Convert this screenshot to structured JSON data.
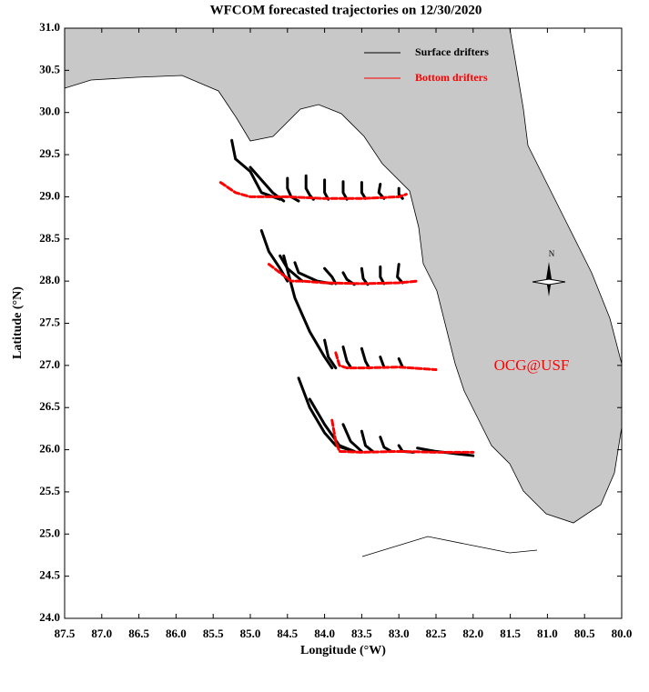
{
  "chart_data": {
    "type": "trajectory-map",
    "title": "WFCOM forecasted trajectories on 12/30/2020",
    "xlabel": "Longitude (°W)",
    "ylabel": "Latitude (°N)",
    "xlim": [
      87.5,
      80.0
    ],
    "ylim": [
      24.0,
      31.0
    ],
    "xticks": [
      {
        "value": 87.5,
        "label": "87.5"
      },
      {
        "value": 87,
        "label": "87.0"
      },
      {
        "value": 86.5,
        "label": "86.5"
      },
      {
        "value": 86,
        "label": "86.0"
      },
      {
        "value": 85.5,
        "label": "85.5"
      },
      {
        "value": 85,
        "label": "85.0"
      },
      {
        "value": 84.5,
        "label": "84.5"
      },
      {
        "value": 84,
        "label": "84.0"
      },
      {
        "value": 83.5,
        "label": "83.5"
      },
      {
        "value": 83,
        "label": "83.0"
      },
      {
        "value": 82.5,
        "label": "82.5"
      },
      {
        "value": 82,
        "label": "82.0"
      },
      {
        "value": 81.5,
        "label": "81.5"
      },
      {
        "value": 81,
        "label": "81.0"
      },
      {
        "value": 80.5,
        "label": "80.5"
      },
      {
        "value": 80,
        "label": "80.0"
      }
    ],
    "yticks": [
      {
        "value": 24,
        "label": "24.0"
      },
      {
        "value": 24.5,
        "label": "24.5"
      },
      {
        "value": 25,
        "label": "25.0"
      },
      {
        "value": 25.5,
        "label": "25.5"
      },
      {
        "value": 26,
        "label": "26.0"
      },
      {
        "value": 26.5,
        "label": "26.5"
      },
      {
        "value": 27,
        "label": "27.0"
      },
      {
        "value": 27.5,
        "label": "27.5"
      },
      {
        "value": 28,
        "label": "28.0"
      },
      {
        "value": 28.5,
        "label": "28.5"
      },
      {
        "value": 29,
        "label": "29.0"
      },
      {
        "value": 29.5,
        "label": "29.5"
      },
      {
        "value": 30,
        "label": "30.0"
      },
      {
        "value": 30.5,
        "label": "30.5"
      },
      {
        "value": 31,
        "label": "31.0"
      }
    ],
    "annotation": "OCG@USF",
    "compass": "N",
    "series": [
      {
        "name": "Surface drifters",
        "color": "#000000",
        "tracks": [
          {
            "x": [
              85.25,
              85.2,
              85.0,
              84.85,
              84.6
            ],
            "y": [
              29.67,
              29.45,
              29.3,
              29.05,
              28.97
            ]
          },
          {
            "x": [
              85.0,
              84.85,
              84.7,
              84.55
            ],
            "y": [
              29.35,
              29.2,
              29.05,
              28.95
            ]
          },
          {
            "x": [
              84.5,
              84.5,
              84.45,
              84.35
            ],
            "y": [
              29.22,
              29.1,
              29.0,
              28.95
            ]
          },
          {
            "x": [
              84.25,
              84.25,
              84.2,
              84.15
            ],
            "y": [
              29.25,
              29.1,
              29.02,
              28.97
            ]
          },
          {
            "x": [
              84.0,
              84.0,
              83.95
            ],
            "y": [
              29.2,
              29.05,
              28.97
            ]
          },
          {
            "x": [
              83.75,
              83.75,
              83.7
            ],
            "y": [
              29.18,
              29.05,
              28.97
            ]
          },
          {
            "x": [
              83.5,
              83.5,
              83.45
            ],
            "y": [
              29.17,
              29.05,
              28.98
            ]
          },
          {
            "x": [
              83.25,
              83.27,
              83.2
            ],
            "y": [
              29.15,
              29.05,
              28.98
            ]
          },
          {
            "x": [
              83.0,
              83.0,
              82.95
            ],
            "y": [
              29.1,
              29.03,
              28.98
            ]
          },
          {
            "x": [
              84.85,
              84.75,
              84.6,
              84.5
            ],
            "y": [
              28.6,
              28.35,
              28.15,
              28.0
            ]
          },
          {
            "x": [
              84.6,
              84.5,
              84.3
            ],
            "y": [
              28.3,
              28.15,
              28.0
            ]
          },
          {
            "x": [
              84.4,
              84.35,
              84.1,
              83.9
            ],
            "y": [
              28.22,
              28.1,
              28.0,
              27.97
            ]
          },
          {
            "x": [
              84.0,
              83.9,
              83.85
            ],
            "y": [
              28.15,
              28.05,
              27.97
            ]
          },
          {
            "x": [
              83.75,
              83.7,
              83.6
            ],
            "y": [
              28.1,
              28.02,
              27.96
            ]
          },
          {
            "x": [
              83.5,
              83.48,
              83.42
            ],
            "y": [
              28.15,
              28.03,
              27.96
            ]
          },
          {
            "x": [
              83.25,
              83.25,
              83.2
            ],
            "y": [
              28.17,
              28.05,
              27.97
            ]
          },
          {
            "x": [
              83.0,
              83.02,
              82.95
            ],
            "y": [
              28.2,
              28.05,
              27.98
            ]
          },
          {
            "x": [
              84.55,
              84.4,
              84.2,
              84.0,
              83.9
            ],
            "y": [
              28.3,
              27.8,
              27.4,
              27.1,
              26.97
            ]
          },
          {
            "x": [
              84.0,
              83.95,
              83.85
            ],
            "y": [
              27.3,
              27.1,
              26.97
            ]
          },
          {
            "x": [
              83.75,
              83.7,
              83.65
            ],
            "y": [
              27.22,
              27.05,
              26.98
            ]
          },
          {
            "x": [
              83.5,
              83.45,
              83.4
            ],
            "y": [
              27.2,
              27.05,
              26.97
            ]
          },
          {
            "x": [
              83.25,
              83.2
            ],
            "y": [
              27.1,
              26.98
            ]
          },
          {
            "x": [
              83.0,
              82.95
            ],
            "y": [
              27.08,
              26.98
            ]
          },
          {
            "x": [
              84.35,
              84.2,
              84.0,
              83.85,
              83.6
            ],
            "y": [
              26.85,
              26.5,
              26.2,
              26.05,
              25.98
            ]
          },
          {
            "x": [
              84.2,
              84.0,
              83.8,
              83.6
            ],
            "y": [
              26.6,
              26.3,
              26.05,
              25.98
            ]
          },
          {
            "x": [
              83.75,
              83.65,
              83.5
            ],
            "y": [
              26.3,
              26.1,
              25.98
            ]
          },
          {
            "x": [
              83.5,
              83.45,
              83.35
            ],
            "y": [
              26.22,
              26.05,
              25.98
            ]
          },
          {
            "x": [
              83.25,
              83.2,
              83.1
            ],
            "y": [
              26.15,
              26.03,
              25.98
            ]
          },
          {
            "x": [
              83.0,
              82.95,
              82.8
            ],
            "y": [
              26.05,
              25.98,
              25.97
            ]
          },
          {
            "x": [
              82.75,
              82.5,
              82.2,
              82.0
            ],
            "y": [
              26.02,
              25.98,
              25.95,
              25.93
            ]
          }
        ]
      },
      {
        "name": "Bottom drifters",
        "color": "#ff0000",
        "tracks": [
          {
            "x": [
              85.4,
              85.2,
              85.0,
              84.5,
              84.0,
              83.5,
              83.0,
              82.9
            ],
            "y": [
              29.17,
              29.05,
              29.0,
              29.0,
              28.98,
              28.98,
              29.0,
              29.03
            ]
          },
          {
            "x": [
              84.75,
              84.6,
              84.45,
              84.3,
              84.0,
              83.5,
              83.0,
              82.75
            ],
            "y": [
              28.2,
              28.1,
              28.0,
              28.0,
              27.98,
              27.97,
              27.98,
              28.0
            ]
          },
          {
            "x": [
              83.85,
              83.8,
              83.7,
              83.5,
              83.0,
              82.5
            ],
            "y": [
              27.15,
              27.0,
              26.97,
              26.97,
              26.98,
              26.95
            ]
          },
          {
            "x": [
              83.9,
              83.85,
              83.8,
              83.5,
              83.0,
              82.5,
              82.0
            ],
            "y": [
              26.35,
              26.1,
              25.98,
              25.97,
              25.98,
              25.97,
              25.97
            ]
          }
        ]
      }
    ]
  }
}
